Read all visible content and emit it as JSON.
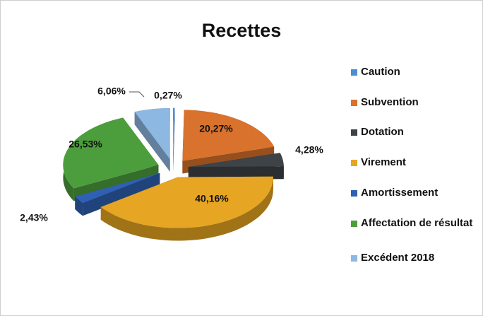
{
  "chart_data": {
    "type": "pie",
    "title": "Recettes",
    "categories": [
      "Caution",
      "Subvention",
      "Dotation",
      "Virement",
      "Amortissement",
      "Affectation de résultat",
      "Excédent 2018"
    ],
    "values": [
      0.27,
      20.27,
      4.28,
      40.16,
      2.43,
      26.53,
      6.06
    ],
    "value_labels": [
      "0,27%",
      "20,27%",
      "4,28%",
      "40,16%",
      "2,43%",
      "26,53%",
      "6,06%"
    ],
    "colors": [
      "#4a8fd0",
      "#d8722c",
      "#3e4347",
      "#e6a522",
      "#2f60b2",
      "#4c9e3c",
      "#8db8e2"
    ],
    "legend": "right"
  }
}
